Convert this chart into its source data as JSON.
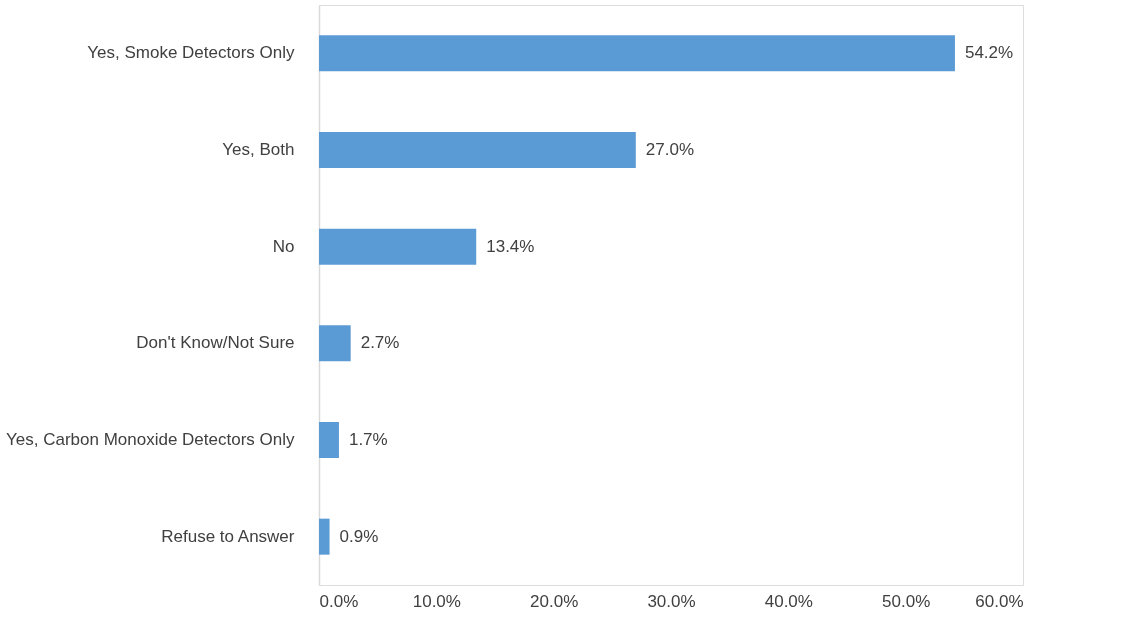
{
  "chart_data": {
    "type": "bar",
    "orientation": "horizontal",
    "categories": [
      "Yes, Smoke Detectors Only",
      "Yes, Both",
      "No",
      "Don't Know/Not Sure",
      "Yes, Carbon Monoxide Detectors Only",
      "Refuse to Answer"
    ],
    "values": [
      54.2,
      27.0,
      13.4,
      2.7,
      1.7,
      0.9
    ],
    "value_labels": [
      "54.2%",
      "27.0%",
      "13.4%",
      "2.7%",
      "1.7%",
      "0.9%"
    ],
    "color": "#5b9bd5",
    "xlim": [
      0,
      60
    ],
    "xticks": [
      {
        "value": 0,
        "label": "0.0%"
      },
      {
        "value": 10,
        "label": "10.0%"
      },
      {
        "value": 20,
        "label": "20.0%"
      },
      {
        "value": 30,
        "label": "30.0%"
      },
      {
        "value": 40,
        "label": "40.0%"
      },
      {
        "value": 50,
        "label": "50.0%"
      },
      {
        "value": 60,
        "label": "60.0%"
      }
    ],
    "grid": false
  }
}
